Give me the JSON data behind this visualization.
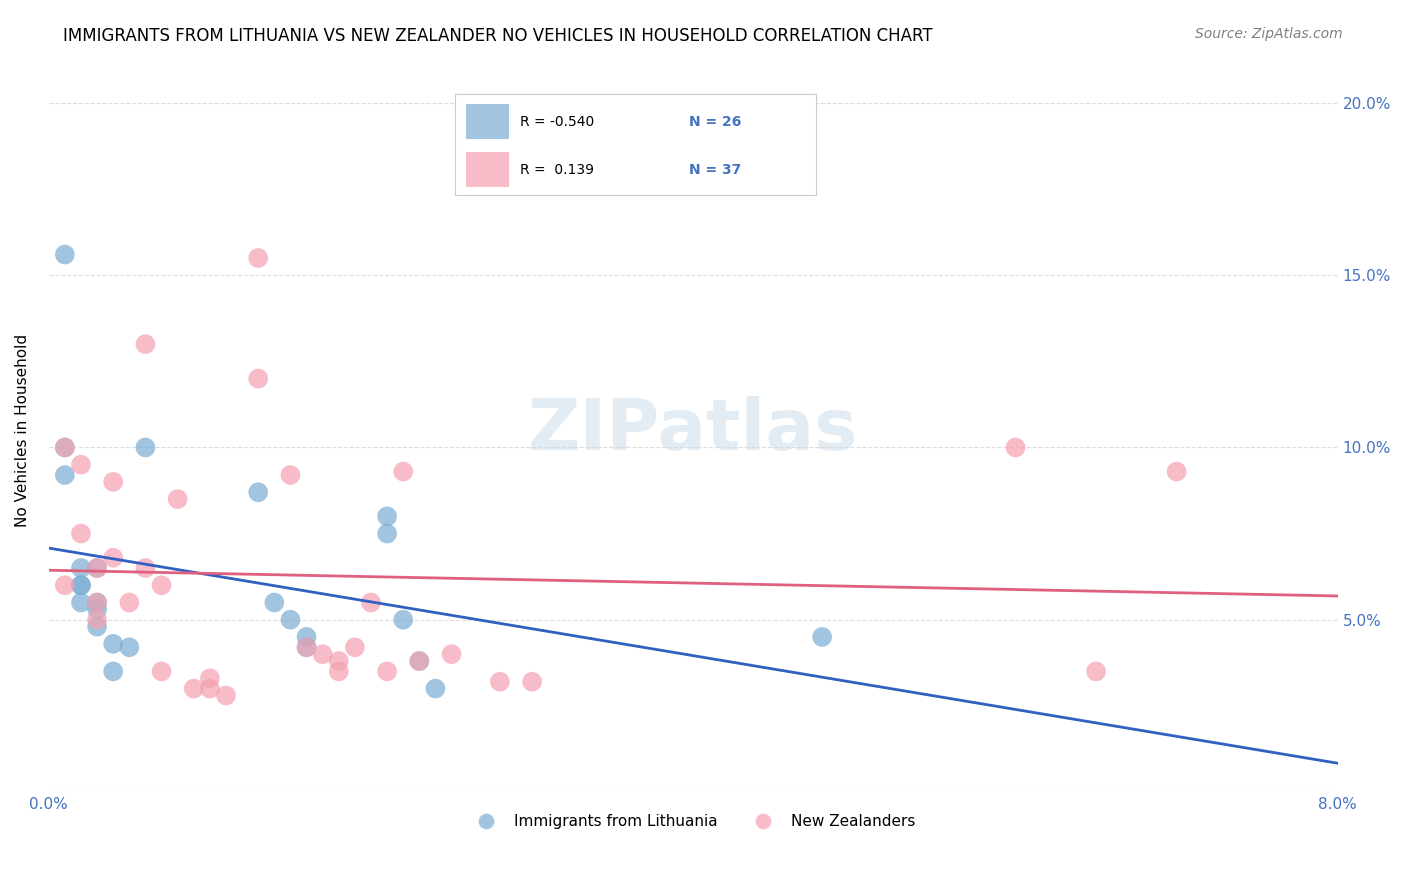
{
  "title": "IMMIGRANTS FROM LITHUANIA VS NEW ZEALANDER NO VEHICLES IN HOUSEHOLD CORRELATION CHART",
  "source": "Source: ZipAtlas.com",
  "ylabel": "No Vehicles in Household",
  "xlim": [
    0.0,
    0.08
  ],
  "ylim": [
    0.0,
    0.21
  ],
  "yticks_right": [
    0.0,
    0.05,
    0.1,
    0.15,
    0.2
  ],
  "ytick_labels_right": [
    "",
    "5.0%",
    "10.0%",
    "15.0%",
    "20.0%"
  ],
  "xticks": [
    0.0,
    0.01,
    0.02,
    0.03,
    0.04,
    0.05,
    0.06,
    0.07,
    0.08
  ],
  "series1_color": "#7aadd4",
  "series2_color": "#f4a0b0",
  "series1_label": "Immigrants from Lithuania",
  "series2_label": "New Zealanders",
  "line1_color": "#3060c0",
  "line2_color": "#e06080",
  "series1_x": [
    0.001,
    0.001,
    0.001,
    0.002,
    0.002,
    0.002,
    0.002,
    0.003,
    0.003,
    0.003,
    0.003,
    0.004,
    0.004,
    0.005,
    0.006,
    0.013,
    0.014,
    0.015,
    0.016,
    0.016,
    0.021,
    0.021,
    0.022,
    0.023,
    0.024,
    0.048
  ],
  "series1_y": [
    0.092,
    0.1,
    0.156,
    0.055,
    0.06,
    0.065,
    0.06,
    0.055,
    0.053,
    0.048,
    0.065,
    0.043,
    0.035,
    0.042,
    0.1,
    0.087,
    0.055,
    0.05,
    0.045,
    0.042,
    0.08,
    0.075,
    0.05,
    0.038,
    0.03,
    0.045
  ],
  "series2_x": [
    0.001,
    0.001,
    0.002,
    0.002,
    0.003,
    0.003,
    0.003,
    0.004,
    0.004,
    0.005,
    0.006,
    0.006,
    0.007,
    0.007,
    0.008,
    0.009,
    0.01,
    0.01,
    0.011,
    0.013,
    0.013,
    0.015,
    0.016,
    0.017,
    0.018,
    0.018,
    0.019,
    0.02,
    0.021,
    0.022,
    0.023,
    0.025,
    0.028,
    0.03,
    0.06,
    0.065,
    0.07
  ],
  "series2_y": [
    0.1,
    0.06,
    0.095,
    0.075,
    0.065,
    0.055,
    0.05,
    0.09,
    0.068,
    0.055,
    0.13,
    0.065,
    0.06,
    0.035,
    0.085,
    0.03,
    0.033,
    0.03,
    0.028,
    0.155,
    0.12,
    0.092,
    0.042,
    0.04,
    0.038,
    0.035,
    0.042,
    0.055,
    0.035,
    0.093,
    0.038,
    0.04,
    0.032,
    0.032,
    0.1,
    0.035,
    0.093
  ],
  "watermark": "ZIPatlas",
  "background_color": "#ffffff",
  "grid_color": "#dddddd"
}
